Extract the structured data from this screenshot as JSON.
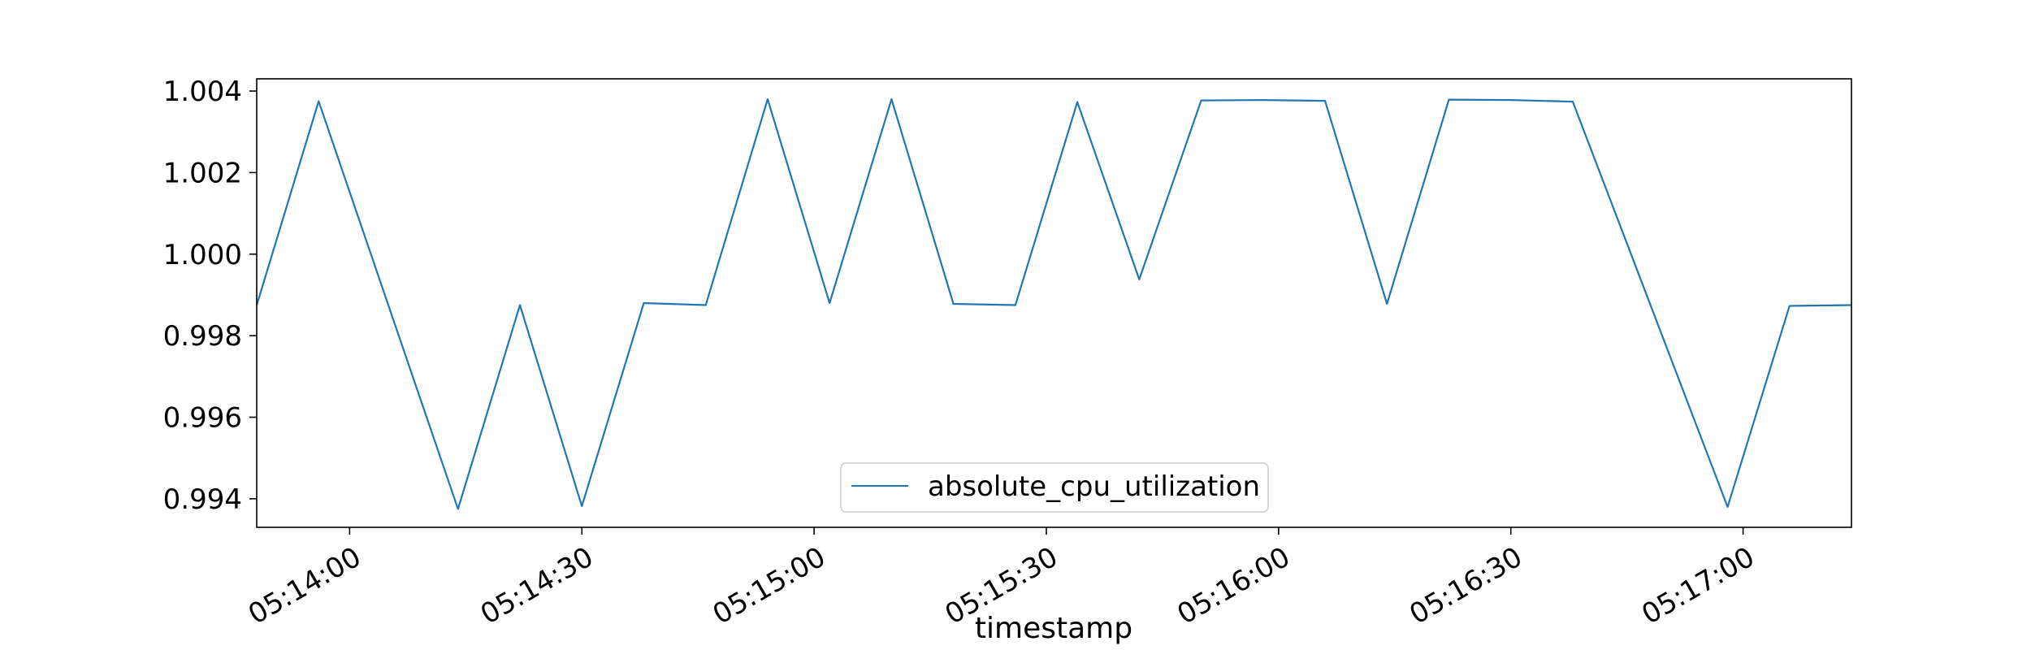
{
  "chart_data": {
    "type": "line",
    "xlabel": "timestamp",
    "ylabel": "",
    "title": "",
    "xlim": [
      "05:13:48",
      "05:17:14"
    ],
    "ylim": [
      0.9933,
      1.0043
    ],
    "grid": false,
    "legend": {
      "placement": "lower-center"
    },
    "x_ticks": [
      "05:14:00",
      "05:14:30",
      "05:15:00",
      "05:15:30",
      "05:16:00",
      "05:16:30",
      "05:17:00"
    ],
    "y_ticks": [
      "0.994",
      "0.996",
      "0.998",
      "1.000",
      "1.002",
      "1.004"
    ],
    "series": [
      {
        "name": "absolute_cpu_utilization",
        "color": "#1f77b4",
        "x": [
          "05:13:48",
          "05:13:56",
          "05:14:14",
          "05:14:22",
          "05:14:30",
          "05:14:38",
          "05:14:46",
          "05:14:54",
          "05:15:02",
          "05:15:10",
          "05:15:18",
          "05:15:26",
          "05:15:34",
          "05:15:42",
          "05:15:50",
          "05:15:58",
          "05:16:06",
          "05:16:14",
          "05:16:22",
          "05:16:30",
          "05:16:38",
          "05:16:58",
          "05:17:06",
          "05:17:14"
        ],
        "y": [
          0.99875,
          1.00375,
          0.99375,
          0.99875,
          0.99382,
          0.9988,
          0.99875,
          1.0038,
          0.9988,
          1.0038,
          0.99878,
          0.99875,
          1.00373,
          0.99938,
          1.00377,
          1.00378,
          1.00376,
          0.99878,
          1.00379,
          1.00378,
          1.00374,
          0.9938,
          0.99873,
          0.99875
        ]
      }
    ]
  }
}
